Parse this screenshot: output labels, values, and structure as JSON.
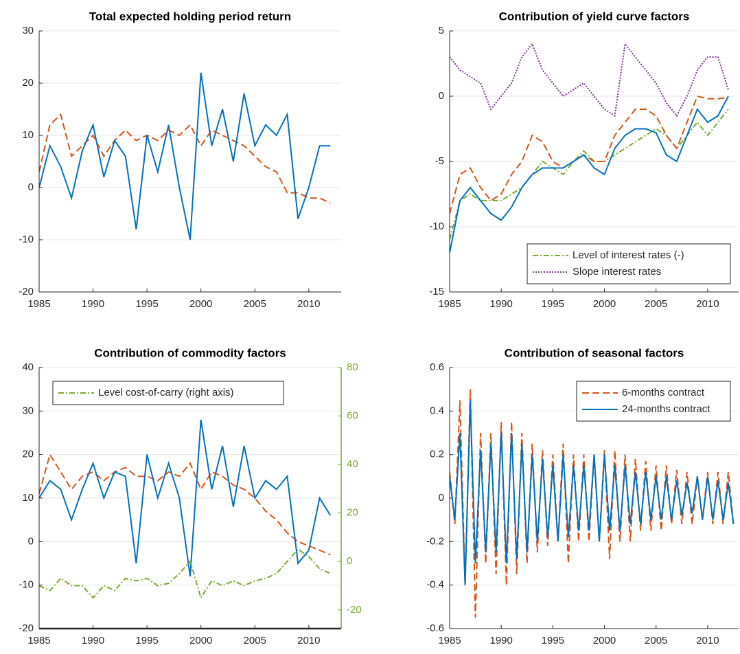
{
  "chart_data": [
    {
      "type": "line",
      "title": "Total expected holding period return",
      "x": [
        1985,
        1986,
        1987,
        1988,
        1989,
        1990,
        1991,
        1992,
        1993,
        1994,
        1995,
        1996,
        1997,
        1998,
        1999,
        2000,
        2001,
        2002,
        2003,
        2004,
        2005,
        2006,
        2007,
        2008,
        2009,
        2010,
        2011,
        2012
      ],
      "xlim": [
        1985,
        2013
      ],
      "xticks": [
        1985,
        1990,
        1995,
        2000,
        2005,
        2010
      ],
      "ylim": [
        -20,
        30
      ],
      "yticks": [
        -20,
        -10,
        0,
        10,
        20,
        30
      ],
      "grid": true,
      "series": [
        {
          "color": "#d95319",
          "style": "dashed",
          "values": [
            3,
            12,
            14,
            6,
            8,
            10,
            6,
            9,
            11,
            9,
            10,
            9,
            11,
            10,
            12,
            8,
            11,
            10,
            9,
            8,
            6,
            4,
            3,
            -1,
            -1,
            -2,
            -2,
            -3
          ]
        },
        {
          "color": "#0072bd",
          "style": "solid",
          "values": [
            0,
            8,
            4,
            -2,
            7,
            12,
            2,
            9,
            6,
            -8,
            10,
            3,
            12,
            0,
            -10,
            22,
            8,
            15,
            5,
            18,
            8,
            12,
            10,
            14,
            -6,
            0,
            8,
            8
          ]
        }
      ]
    },
    {
      "type": "line",
      "title": "Contribution of yield curve factors",
      "x": [
        1985,
        1986,
        1987,
        1988,
        1989,
        1990,
        1991,
        1992,
        1993,
        1994,
        1995,
        1996,
        1997,
        1998,
        1999,
        2000,
        2001,
        2002,
        2003,
        2004,
        2005,
        2006,
        2007,
        2008,
        2009,
        2010,
        2011,
        2012
      ],
      "xlim": [
        1985,
        2013
      ],
      "xticks": [
        1985,
        1990,
        1995,
        2000,
        2005,
        2010
      ],
      "ylim": [
        -15,
        5
      ],
      "yticks": [
        -15,
        -10,
        -5,
        0,
        5
      ],
      "grid": true,
      "legend": "lower right",
      "series": [
        {
          "name": "Level of interest rates (-)",
          "color": "#77ac30",
          "style": "dashdot",
          "values": [
            -11,
            -8,
            -7.5,
            -8,
            -8,
            -8,
            -7.5,
            -7,
            -6,
            -5,
            -5.5,
            -6,
            -5,
            -4.2,
            -5,
            -5,
            -4.5,
            -4,
            -3.5,
            -3,
            -2.5,
            -3,
            -4,
            -3,
            -2,
            -3,
            -2,
            -1
          ]
        },
        {
          "name": "Slope interest rates",
          "color": "#7e2f8e",
          "style": "dotted",
          "values": [
            3,
            2,
            1.5,
            1,
            -1,
            0,
            1,
            3,
            4,
            2,
            1,
            0,
            0.5,
            1,
            0,
            -1,
            -1.5,
            4,
            3,
            2,
            1,
            -0.5,
            -1.5,
            0,
            2,
            3,
            3,
            0.5
          ]
        },
        {
          "color": "#d95319",
          "style": "dashed",
          "values": [
            -9,
            -6,
            -5.5,
            -7,
            -8,
            -7.5,
            -6,
            -5,
            -3,
            -3.5,
            -5,
            -5.5,
            -5,
            -4.5,
            -5,
            -5,
            -3,
            -2,
            -1,
            -1,
            -1.5,
            -3,
            -4,
            -2,
            0,
            -0.2,
            -0.2,
            -0.1
          ]
        },
        {
          "color": "#0072bd",
          "style": "solid",
          "values": [
            -12,
            -8,
            -7,
            -8,
            -9,
            -9.5,
            -8.5,
            -7,
            -6,
            -5.5,
            -5.5,
            -5.5,
            -5,
            -4.5,
            -5.5,
            -6,
            -4,
            -3,
            -2.5,
            -2.5,
            -2.8,
            -4.5,
            -5,
            -3,
            -1,
            -2,
            -1.5,
            0
          ]
        }
      ]
    },
    {
      "type": "line",
      "title": "Contribution of commodity factors",
      "x": [
        1985,
        1986,
        1987,
        1988,
        1989,
        1990,
        1991,
        1992,
        1993,
        1994,
        1995,
        1996,
        1997,
        1998,
        1999,
        2000,
        2001,
        2002,
        2003,
        2004,
        2005,
        2006,
        2007,
        2008,
        2009,
        2010,
        2011,
        2012
      ],
      "xlim": [
        1985,
        2013
      ],
      "xticks": [
        1985,
        1990,
        1995,
        2000,
        2005,
        2010
      ],
      "ylim": [
        -20,
        40
      ],
      "yticks": [
        -20,
        -10,
        0,
        10,
        20,
        30,
        40
      ],
      "grid": true,
      "legend": "upper left",
      "y2lim": [
        -27.7,
        80
      ],
      "y2ticks": [
        -20,
        0,
        20,
        40,
        60,
        80
      ],
      "series": [
        {
          "color": "#d95319",
          "style": "dashed",
          "values": [
            11,
            20,
            16,
            12,
            15,
            16,
            14,
            16,
            17,
            15,
            15,
            14,
            16,
            15,
            18,
            12,
            16,
            15,
            13,
            12,
            10,
            7,
            5,
            2,
            0,
            -1,
            -2,
            -3
          ]
        },
        {
          "color": "#0072bd",
          "style": "solid",
          "values": [
            10,
            14,
            12,
            5,
            12,
            18,
            10,
            16,
            15,
            -5,
            20,
            10,
            18,
            10,
            -8,
            28,
            12,
            22,
            8,
            22,
            10,
            14,
            12,
            15,
            -5,
            -2,
            10,
            6
          ]
        },
        {
          "name": "Level cost-of-carry (right axis)",
          "color": "#77ac30",
          "style": "dashdot",
          "axis": "y2",
          "values": [
            -10,
            -12,
            -7,
            -10,
            -10,
            -15,
            -10,
            -12,
            -7,
            -8,
            -7,
            -10,
            -9,
            -5,
            0,
            -15,
            -8,
            -10,
            -8,
            -10,
            -8,
            -7,
            -5,
            0,
            5,
            2,
            -3,
            -5
          ]
        }
      ]
    },
    {
      "type": "line",
      "title": "Contribution of seasonal factors",
      "x": [
        1985,
        1985.5,
        1986,
        1986.5,
        1987,
        1987.5,
        1988,
        1988.5,
        1989,
        1989.5,
        1990,
        1990.5,
        1991,
        1991.5,
        1992,
        1992.5,
        1993,
        1993.5,
        1994,
        1994.5,
        1995,
        1995.5,
        1996,
        1996.5,
        1997,
        1997.5,
        1998,
        1998.5,
        1999,
        1999.5,
        2000,
        2000.5,
        2001,
        2001.5,
        2002,
        2002.5,
        2003,
        2003.5,
        2004,
        2004.5,
        2005,
        2005.5,
        2006,
        2006.5,
        2007,
        2007.5,
        2008,
        2008.5,
        2009,
        2009.5,
        2010,
        2010.5,
        2011,
        2011.5,
        2012,
        2012.5
      ],
      "xlim": [
        1985,
        2013
      ],
      "xticks": [
        1985,
        1990,
        1995,
        2000,
        2005,
        2010
      ],
      "ylim": [
        -0.6,
        0.6
      ],
      "yticks": [
        -0.6,
        -0.4,
        -0.2,
        0,
        0.2,
        0.4,
        0.6
      ],
      "grid": true,
      "legend": "upper right",
      "series": [
        {
          "name": "6-months contract",
          "color": "#d95319",
          "style": "dashed",
          "values": [
            0.12,
            -0.12,
            0.45,
            -0.4,
            0.5,
            -0.55,
            0.3,
            -0.3,
            0.3,
            -0.35,
            0.35,
            -0.4,
            0.35,
            -0.35,
            0.3,
            -0.3,
            0.25,
            -0.25,
            0.22,
            -0.22,
            0.2,
            -0.2,
            0.25,
            -0.3,
            0.2,
            -0.2,
            0.2,
            -0.2,
            0.2,
            -0.2,
            0.22,
            -0.28,
            0.22,
            -0.2,
            0.2,
            -0.2,
            0.18,
            -0.15,
            0.17,
            -0.15,
            0.15,
            -0.15,
            0.15,
            -0.12,
            0.13,
            -0.12,
            0.12,
            -0.12,
            0.1,
            -0.1,
            0.12,
            -0.12,
            0.12,
            -0.12,
            0.12,
            -0.12
          ]
        },
        {
          "name": "24-months contract",
          "color": "#0072bd",
          "style": "solid",
          "values": [
            0.1,
            -0.1,
            0.3,
            -0.4,
            0.45,
            -0.3,
            0.22,
            -0.25,
            0.25,
            -0.25,
            0.3,
            -0.3,
            0.3,
            -0.28,
            0.25,
            -0.25,
            0.2,
            -0.2,
            0.18,
            -0.18,
            0.15,
            -0.2,
            0.2,
            -0.18,
            0.15,
            -0.15,
            0.15,
            -0.15,
            0.2,
            -0.2,
            0.2,
            -0.15,
            0.15,
            -0.15,
            0.15,
            -0.12,
            0.12,
            -0.12,
            0.12,
            -0.1,
            0.1,
            -0.1,
            0.1,
            -0.1,
            0.08,
            -0.08,
            0.07,
            -0.07,
            0.1,
            -0.1,
            0.1,
            -0.1,
            0.08,
            -0.1,
            0.07,
            -0.12
          ]
        }
      ]
    }
  ]
}
